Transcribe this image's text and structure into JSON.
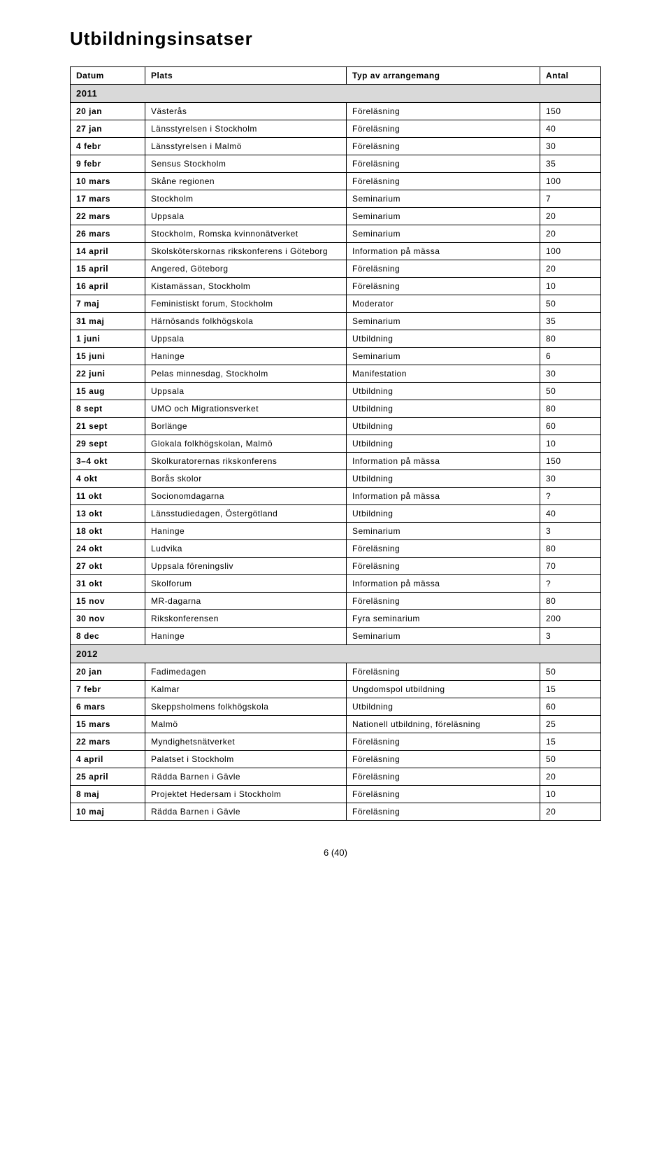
{
  "title": "Utbildningsinsatser",
  "columns": [
    "Datum",
    "Plats",
    "Typ av arrangemang",
    "Antal"
  ],
  "footer": "6 (40)",
  "colors": {
    "year_row_bg": "#d9d9d9",
    "border": "#000000",
    "text": "#000000",
    "background": "#ffffff"
  },
  "groups": [
    {
      "year": "2011",
      "rows": [
        {
          "date": "20 jan",
          "place": "Västerås",
          "type": "Föreläsning",
          "count": "150"
        },
        {
          "date": "27 jan",
          "place": "Länsstyrelsen i Stockholm",
          "type": "Föreläsning",
          "count": "40"
        },
        {
          "date": "4 febr",
          "place": "Länsstyrelsen i Malmö",
          "type": "Föreläsning",
          "count": "30"
        },
        {
          "date": "9 febr",
          "place": "Sensus Stockholm",
          "type": "Föreläsning",
          "count": "35"
        },
        {
          "date": "10 mars",
          "place": "Skåne regionen",
          "type": "Föreläsning",
          "count": "100"
        },
        {
          "date": "17 mars",
          "place": "Stockholm",
          "type": "Seminarium",
          "count": "7"
        },
        {
          "date": "22 mars",
          "place": "Uppsala",
          "type": "Seminarium",
          "count": "20"
        },
        {
          "date": "26 mars",
          "place": "Stockholm, Romska kvinnonätverket",
          "type": "Seminarium",
          "count": "20"
        },
        {
          "date": "14 april",
          "place": "Skolsköterskornas rikskonferens i Göteborg",
          "type": "Information på mässa",
          "count": "100"
        },
        {
          "date": "15 april",
          "place": "Angered, Göteborg",
          "type": "Föreläsning",
          "count": "20"
        },
        {
          "date": "16 april",
          "place": "Kistamässan, Stockholm",
          "type": "Föreläsning",
          "count": "10"
        },
        {
          "date": "7 maj",
          "place": "Feministiskt forum, Stockholm",
          "type": "Moderator",
          "count": "50"
        },
        {
          "date": "31 maj",
          "place": "Härnösands folkhögskola",
          "type": "Seminarium",
          "count": "35"
        },
        {
          "date": "1 juni",
          "place": "Uppsala",
          "type": "Utbildning",
          "count": "80"
        },
        {
          "date": "15 juni",
          "place": "Haninge",
          "type": "Seminarium",
          "count": "6"
        },
        {
          "date": "22 juni",
          "place": "Pelas minnesdag, Stockholm",
          "type": "Manifestation",
          "count": "30"
        },
        {
          "date": "15 aug",
          "place": "Uppsala",
          "type": "Utbildning",
          "count": "50"
        },
        {
          "date": "8 sept",
          "place": "UMO och Migrationsverket",
          "type": "Utbildning",
          "count": "80"
        },
        {
          "date": "21 sept",
          "place": "Borlänge",
          "type": "Utbildning",
          "count": "60"
        },
        {
          "date": "29 sept",
          "place": "Glokala folkhögskolan, Malmö",
          "type": "Utbildning",
          "count": "10"
        },
        {
          "date": "3–4 okt",
          "place": "Skolkuratorernas rikskonferens",
          "type": "Information på mässa",
          "count": "150"
        },
        {
          "date": "4 okt",
          "place": "Borås skolor",
          "type": "Utbildning",
          "count": "30"
        },
        {
          "date": "11 okt",
          "place": "Socionomdagarna",
          "type": "Information på mässa",
          "count": "?"
        },
        {
          "date": "13 okt",
          "place": "Länsstudiedagen, Östergötland",
          "type": "Utbildning",
          "count": "40"
        },
        {
          "date": "18 okt",
          "place": "Haninge",
          "type": "Seminarium",
          "count": "3"
        },
        {
          "date": "24 okt",
          "place": "Ludvika",
          "type": "Föreläsning",
          "count": "80"
        },
        {
          "date": "27 okt",
          "place": "Uppsala föreningsliv",
          "type": "Föreläsning",
          "count": "70"
        },
        {
          "date": "31 okt",
          "place": "Skolforum",
          "type": "Information på mässa",
          "count": "?"
        },
        {
          "date": "15 nov",
          "place": "MR-dagarna",
          "type": "Föreläsning",
          "count": "80"
        },
        {
          "date": "30 nov",
          "place": "Rikskonferensen",
          "type": "Fyra seminarium",
          "count": "200"
        },
        {
          "date": "8 dec",
          "place": "Haninge",
          "type": "Seminarium",
          "count": "3"
        }
      ]
    },
    {
      "year": "2012",
      "rows": [
        {
          "date": "20 jan",
          "place": "Fadimedagen",
          "type": "Föreläsning",
          "count": "50"
        },
        {
          "date": "7 febr",
          "place": "Kalmar",
          "type": "Ungdomspol utbildning",
          "count": "15"
        },
        {
          "date": "6 mars",
          "place": "Skeppsholmens folkhögskola",
          "type": "Utbildning",
          "count": "60"
        },
        {
          "date": "15 mars",
          "place": "Malmö",
          "type": "Nationell utbildning, föreläsning",
          "count": "25"
        },
        {
          "date": "22 mars",
          "place": "Myndighetsnätverket",
          "type": "Föreläsning",
          "count": "15"
        },
        {
          "date": "4 april",
          "place": "Palatset i Stockholm",
          "type": "Föreläsning",
          "count": "50"
        },
        {
          "date": "25 april",
          "place": "Rädda Barnen i Gävle",
          "type": "Föreläsning",
          "count": "20"
        },
        {
          "date": "8 maj",
          "place": "Projektet Hedersam i Stockholm",
          "type": "Föreläsning",
          "count": "10"
        },
        {
          "date": "10 maj",
          "place": "Rädda Barnen i Gävle",
          "type": "Föreläsning",
          "count": "20"
        }
      ]
    }
  ]
}
